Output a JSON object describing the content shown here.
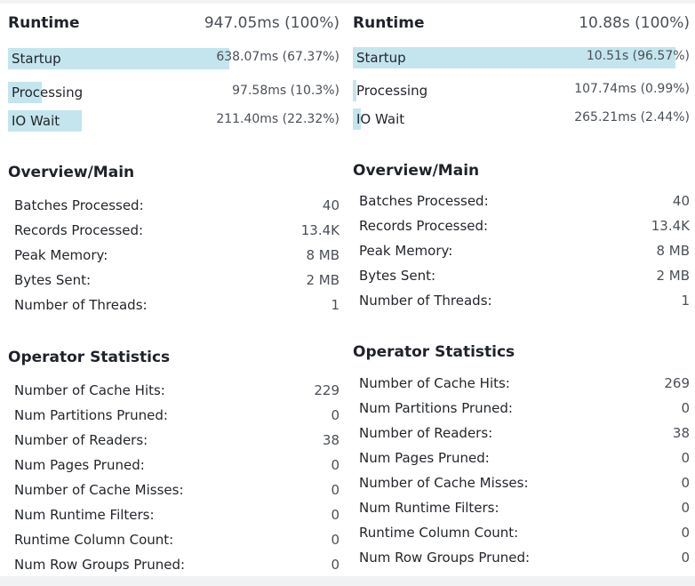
{
  "panels": [
    {
      "runtime": {
        "title": "Runtime",
        "total": "947.05ms (100%)",
        "rows": [
          {
            "label": "Startup",
            "value": "638.07ms (67.37%)",
            "fraction": 0.6737
          },
          {
            "label": "Processing",
            "value": "97.58ms (10.3%)",
            "fraction": 0.103
          },
          {
            "label": "IO Wait",
            "value": "211.40ms (22.32%)",
            "fraction": 0.2232
          }
        ]
      },
      "overview": {
        "title": "Overview/Main",
        "rows": [
          {
            "label": "Batches Processed:",
            "value": "40"
          },
          {
            "label": "Records Processed:",
            "value": "13.4K"
          },
          {
            "label": "Peak Memory:",
            "value": "8 MB"
          },
          {
            "label": "Bytes Sent:",
            "value": "2 MB"
          },
          {
            "label": "Number of Threads:",
            "value": "1"
          }
        ]
      },
      "operator": {
        "title": "Operator Statistics",
        "rows": [
          {
            "label": "Number of Cache Hits:",
            "value": "229"
          },
          {
            "label": "Num Partitions Pruned:",
            "value": "0"
          },
          {
            "label": "Number of Readers:",
            "value": "38"
          },
          {
            "label": "Num Pages Pruned:",
            "value": "0"
          },
          {
            "label": "Number of Cache Misses:",
            "value": "0"
          },
          {
            "label": "Num Runtime Filters:",
            "value": "0"
          },
          {
            "label": "Runtime Column Count:",
            "value": "0"
          },
          {
            "label": "Num Row Groups Pruned:",
            "value": "0"
          }
        ]
      }
    },
    {
      "runtime": {
        "title": "Runtime",
        "total": "10.88s (100%)",
        "rows": [
          {
            "label": "Startup",
            "value": "10.51s (96.57%)",
            "fraction": 0.9657
          },
          {
            "label": "Processing",
            "value": "107.74ms (0.99%)",
            "fraction": 0.0099
          },
          {
            "label": "IO Wait",
            "value": "265.21ms (2.44%)",
            "fraction": 0.0244
          }
        ]
      },
      "overview": {
        "title": "Overview/Main",
        "rows": [
          {
            "label": "Batches Processed:",
            "value": "40"
          },
          {
            "label": "Records Processed:",
            "value": "13.4K"
          },
          {
            "label": "Peak Memory:",
            "value": "8 MB"
          },
          {
            "label": "Bytes Sent:",
            "value": "2 MB"
          },
          {
            "label": "Number of Threads:",
            "value": "1"
          }
        ]
      },
      "operator": {
        "title": "Operator Statistics",
        "rows": [
          {
            "label": "Number of Cache Hits:",
            "value": "269"
          },
          {
            "label": "Num Partitions Pruned:",
            "value": "0"
          },
          {
            "label": "Number of Readers:",
            "value": "38"
          },
          {
            "label": "Num Pages Pruned:",
            "value": "0"
          },
          {
            "label": "Number of Cache Misses:",
            "value": "0"
          },
          {
            "label": "Num Runtime Filters:",
            "value": "0"
          },
          {
            "label": "Runtime Column Count:",
            "value": "0"
          },
          {
            "label": "Num Row Groups Pruned:",
            "value": "0"
          }
        ]
      }
    }
  ]
}
